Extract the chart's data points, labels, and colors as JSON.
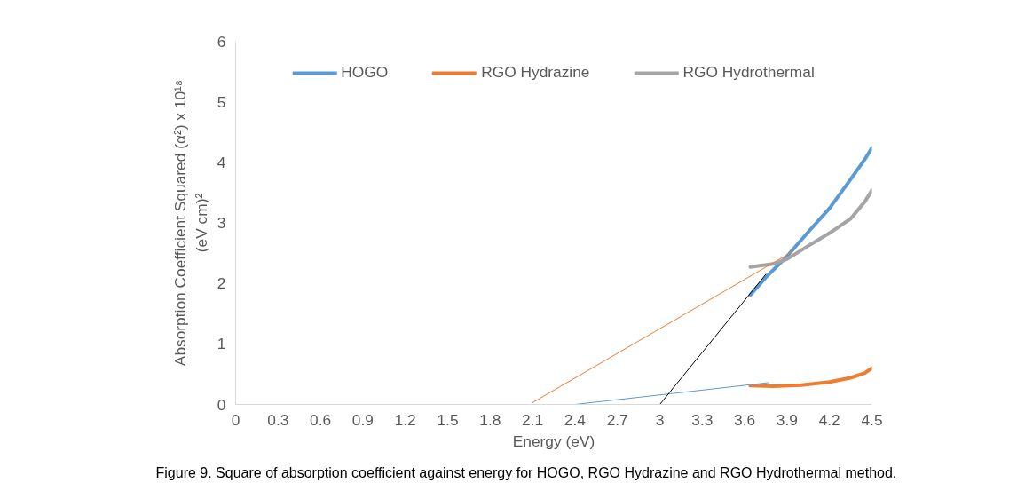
{
  "chart_data": {
    "type": "line",
    "xlabel": "Energy (eV)",
    "ylabel": "Absorption Coefficient Squared (α²) x 10¹⁸\n(eV cm)²",
    "xlim": [
      0,
      4.5
    ],
    "xticks": [
      0,
      0.3,
      0.6,
      0.9,
      1.2,
      1.5,
      1.8,
      2.1,
      2.4,
      2.7,
      3,
      3.3,
      3.6,
      3.9,
      4.2,
      4.5
    ],
    "ylim": [
      0,
      6
    ],
    "yticks": [
      0,
      1,
      2,
      3,
      4,
      5,
      6
    ],
    "grid": false,
    "legend": "top",
    "marker": "none",
    "line_style": "solid",
    "series": [
      {
        "name": "HOGO",
        "color": "#5b9bd5",
        "x": [
          3.64,
          3.75,
          3.9,
          4.05,
          4.2,
          4.35,
          4.45,
          4.5
        ],
        "values": [
          1.81,
          2.1,
          2.45,
          2.85,
          3.24,
          3.72,
          4.05,
          4.24
        ]
      },
      {
        "name": "RGO Hydrazine",
        "color": "#ed7d31",
        "x": [
          3.64,
          3.8,
          4.0,
          4.2,
          4.35,
          4.45,
          4.5
        ],
        "values": [
          0.31,
          0.3,
          0.32,
          0.37,
          0.44,
          0.52,
          0.6
        ]
      },
      {
        "name": "RGO Hydrothermal",
        "color": "#a5a5a5",
        "x": [
          3.64,
          3.8,
          3.9,
          4.05,
          4.2,
          4.35,
          4.45,
          4.5
        ],
        "values": [
          2.27,
          2.32,
          2.4,
          2.62,
          2.83,
          3.07,
          3.35,
          3.54
        ]
      },
      {
        "type": "line",
        "color": "#ed7d31",
        "x": [
          2.1,
          3.95
        ],
        "values": [
          0.03,
          2.54
        ]
      },
      {
        "type": "line",
        "color": "#5b9bd5",
        "x": [
          2.4,
          3.77
        ],
        "values": [
          0,
          0.36
        ]
      },
      {
        "type": "line",
        "color": "#000000",
        "x": [
          3.0,
          3.75
        ],
        "values": [
          0,
          2.15
        ]
      }
    ],
    "annotations": [
      "Figure 9. Square of absorption coefficient against energy for HOGO, RGO Hydrazine and RGO Hydrothermal method."
    ]
  }
}
